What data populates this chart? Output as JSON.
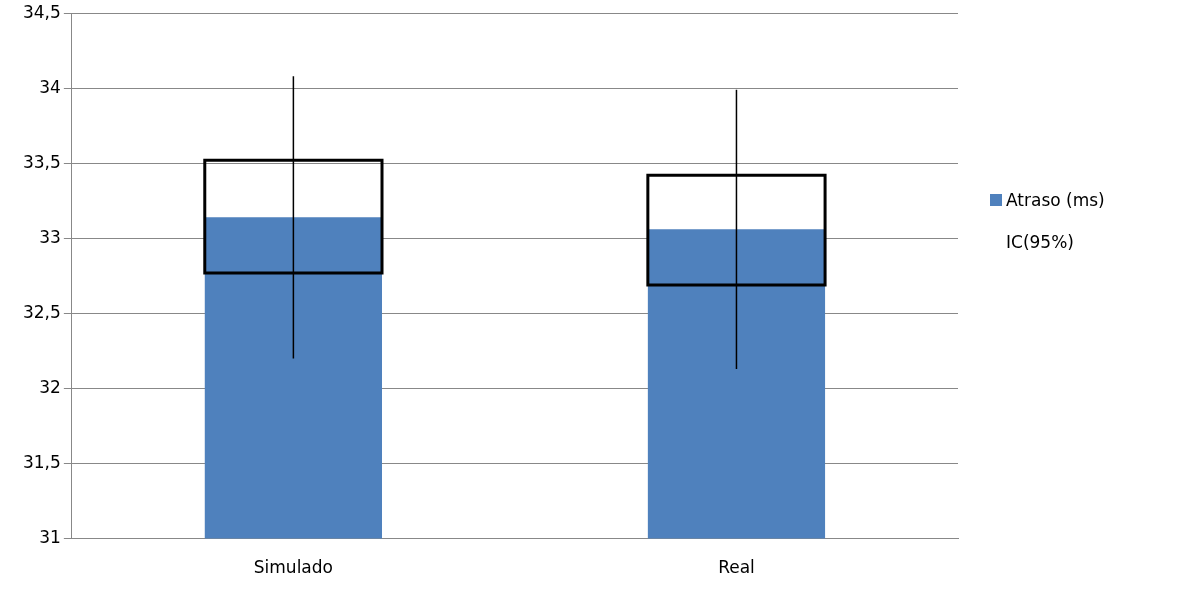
{
  "chart_data": {
    "type": "bar",
    "categories": [
      "Simulado",
      "Real"
    ],
    "series": [
      {
        "name": "Atraso (ms)",
        "color": "#4f81bd",
        "values": [
          33.14,
          33.06
        ]
      },
      {
        "name": "IC(95%)",
        "type": "candlestick",
        "color": "#000000",
        "ohlc": [
          [
            32.77,
            34.08,
            32.2,
            33.52
          ],
          [
            32.69,
            33.99,
            32.13,
            33.42
          ]
        ]
      }
    ],
    "ylim": [
      31,
      34.5
    ],
    "yticks": [
      31,
      {
        "value": 31.5,
        "label": "31,5"
      },
      32,
      {
        "value": 32.5,
        "label": "32,5"
      },
      33,
      {
        "value": 33.5,
        "label": "33,5"
      },
      34,
      {
        "value": 34.5,
        "label": "34,5"
      }
    ],
    "grid": "y",
    "legend": "right"
  }
}
